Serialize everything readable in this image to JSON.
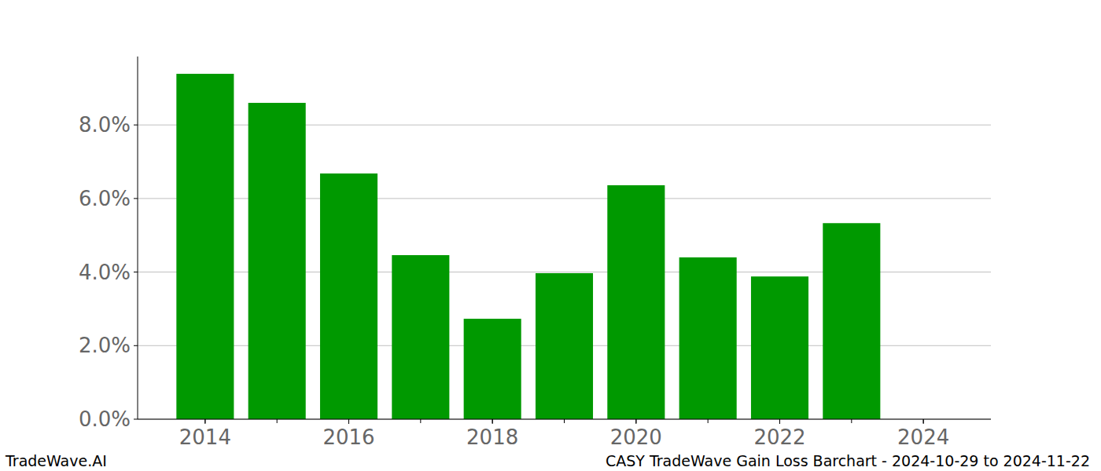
{
  "chart_data": {
    "type": "bar",
    "title": "CASY TradeWave Gain Loss Barchart - 2024-10-29 to 2024-11-22",
    "source": "TradeWave.AI",
    "x": [
      2014,
      2015,
      2016,
      2017,
      2018,
      2019,
      2020,
      2021,
      2022,
      2023,
      2024
    ],
    "values": [
      9.39,
      8.6,
      6.68,
      4.46,
      2.73,
      3.97,
      6.36,
      4.4,
      3.88,
      5.33,
      0
    ],
    "color": "#009900",
    "xlim": [
      2013.06,
      2024.94
    ],
    "xticks": [
      2014,
      2016,
      2018,
      2020,
      2022,
      2024
    ],
    "ylim": [
      0,
      9.86
    ],
    "yticks": [
      {
        "value": 0,
        "label": "0.0%"
      },
      {
        "value": 2,
        "label": "2.0%"
      },
      {
        "value": 4,
        "label": "4.0%"
      },
      {
        "value": 6,
        "label": "6.0%"
      },
      {
        "value": 8,
        "label": "8.0%"
      }
    ],
    "grid": true
  }
}
